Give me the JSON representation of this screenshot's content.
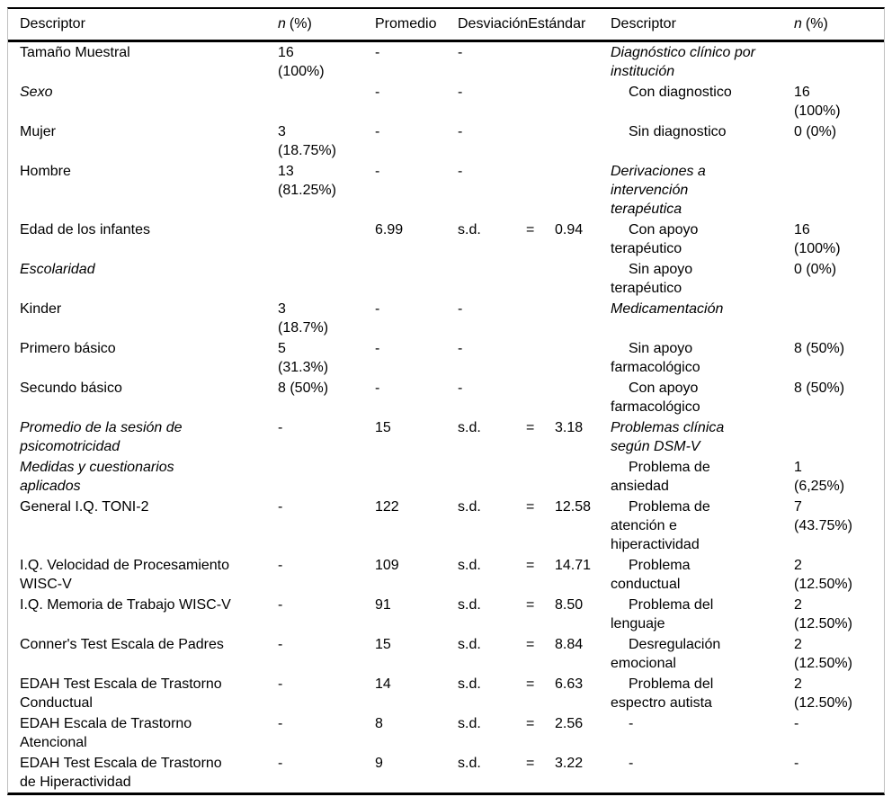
{
  "colors": {
    "background": "#ffffff",
    "text": "#000000",
    "rule": "#000000",
    "outer_border": "#bfbfbf"
  },
  "table": {
    "header": {
      "col1": "Descriptor",
      "col2_n": "n",
      "col2_pct": "(%)",
      "col3": "Promedio",
      "col4": "DesviaciónEstándar",
      "col5": "Descriptor",
      "col6_n": "n",
      "col6_pct": "(%)"
    },
    "rows": [
      {
        "left_desc": "Tamaño Muestral",
        "left_italic": false,
        "left_n": "16\n(100%)",
        "left_prom": "-",
        "sd_label": "-",
        "sd_eq": "",
        "sd_val": "",
        "right_desc": "Diagnóstico clínico por\ninstitución",
        "right_italic": true,
        "right_indent": false,
        "right_n": ""
      },
      {
        "left_desc": "Sexo",
        "left_italic": true,
        "left_n": "",
        "left_prom": "-",
        "sd_label": "-",
        "sd_eq": "",
        "sd_val": "",
        "right_desc": "Con diagnostico",
        "right_italic": false,
        "right_indent": true,
        "right_n": "16\n(100%)"
      },
      {
        "left_desc": "Mujer",
        "left_italic": false,
        "left_n": "3\n(18.75%)",
        "left_prom": "-",
        "sd_label": "-",
        "sd_eq": "",
        "sd_val": "",
        "right_desc": "Sin diagnostico",
        "right_italic": false,
        "right_indent": true,
        "right_n": "0 (0%)"
      },
      {
        "left_desc": "Hombre",
        "left_italic": false,
        "left_n": "13\n(81.25%)",
        "left_prom": "-",
        "sd_label": "-",
        "sd_eq": "",
        "sd_val": "",
        "right_desc": "Derivaciones a\nintervención\nterapéutica",
        "right_italic": true,
        "right_indent": false,
        "right_n": ""
      },
      {
        "left_desc": "Edad de los infantes",
        "left_italic": false,
        "left_n": "",
        "left_prom": "6.99",
        "sd_label": "s.d.",
        "sd_eq": "=",
        "sd_val": "0.94",
        "right_desc": "Con apoyo\nterapéutico",
        "right_italic": false,
        "right_indent": true,
        "right_n": "16\n(100%)"
      },
      {
        "left_desc": "Escolaridad",
        "left_italic": true,
        "left_n": "",
        "left_prom": "",
        "sd_label": "",
        "sd_eq": "",
        "sd_val": "",
        "right_desc": "Sin apoyo\nterapéutico",
        "right_italic": false,
        "right_indent": true,
        "right_n": "0 (0%)"
      },
      {
        "left_desc": "Kinder",
        "left_italic": false,
        "left_n": "3\n(18.7%)",
        "left_prom": "-",
        "sd_label": "-",
        "sd_eq": "",
        "sd_val": "",
        "right_desc": "Medicamentación",
        "right_italic": true,
        "right_indent": false,
        "right_n": ""
      },
      {
        "left_desc": "Primero básico",
        "left_italic": false,
        "left_n": "5\n(31.3%)",
        "left_prom": "-",
        "sd_label": "-",
        "sd_eq": "",
        "sd_val": "",
        "right_desc": "Sin apoyo\nfarmacológico",
        "right_italic": false,
        "right_indent": true,
        "right_n": "8 (50%)"
      },
      {
        "left_desc": "Secundo básico",
        "left_italic": false,
        "left_n": "8 (50%)",
        "left_prom": "-",
        "sd_label": "-",
        "sd_eq": "",
        "sd_val": "",
        "right_desc": "Con apoyo\nfarmacológico",
        "right_italic": false,
        "right_indent": true,
        "right_n": "8 (50%)"
      },
      {
        "left_desc": "Promedio de la sesión de\npsicomotricidad",
        "left_italic": true,
        "left_n": "-",
        "left_prom": "15",
        "sd_label": "s.d.",
        "sd_eq": "=",
        "sd_val": "3.18",
        "right_desc": "Problemas clínica\nsegún DSM-V",
        "right_italic": true,
        "right_indent": false,
        "right_n": ""
      },
      {
        "left_desc": "Medidas y cuestionarios\naplicados",
        "left_italic": true,
        "left_n": "",
        "left_prom": "",
        "sd_label": "",
        "sd_eq": "",
        "sd_val": "",
        "right_desc": "Problema de\nansiedad",
        "right_italic": false,
        "right_indent": true,
        "right_n": "1\n(6,25%)"
      },
      {
        "left_desc": "General I.Q. TONI-2",
        "left_italic": false,
        "left_n": "-",
        "left_prom": "122",
        "sd_label": "s.d.",
        "sd_eq": "=",
        "sd_val": "12.58",
        "right_desc": "Problema de\natención e\nhiperactividad",
        "right_italic": false,
        "right_indent": true,
        "right_n": "7\n(43.75%)"
      },
      {
        "left_desc": "I.Q. Velocidad de Procesamiento\nWISC-V",
        "left_italic": false,
        "left_n": "-",
        "left_prom": "109",
        "sd_label": "s.d.",
        "sd_eq": "=",
        "sd_val": "14.71",
        "right_desc": "Problema\nconductual",
        "right_italic": false,
        "right_indent": true,
        "right_n": "2\n(12.50%)"
      },
      {
        "left_desc": "I.Q. Memoria de Trabajo WISC-V",
        "left_italic": false,
        "left_n": "-",
        "left_prom": "91",
        "sd_label": "s.d.",
        "sd_eq": "=",
        "sd_val": "8.50",
        "right_desc": "Problema del\nlenguaje",
        "right_italic": false,
        "right_indent": true,
        "right_n": "2\n(12.50%)"
      },
      {
        "left_desc": "Conner's Test Escala de Padres",
        "left_italic": false,
        "left_n": "-",
        "left_prom": "15",
        "sd_label": "s.d.",
        "sd_eq": "=",
        "sd_val": "8.84",
        "right_desc": "Desregulación\nemocional",
        "right_italic": false,
        "right_indent": true,
        "right_n": "2\n(12.50%)"
      },
      {
        "left_desc": "EDAH Test Escala de Trastorno\nConductual",
        "left_italic": false,
        "left_n": "-",
        "left_prom": "14",
        "sd_label": "s.d.",
        "sd_eq": "=",
        "sd_val": "6.63",
        "right_desc": "Problema del\nespectro autista",
        "right_italic": false,
        "right_indent": true,
        "right_n": "2\n(12.50%)"
      },
      {
        "left_desc": "EDAH Escala de Trastorno\nAtencional",
        "left_italic": false,
        "left_n": "-",
        "left_prom": "8",
        "sd_label": "s.d.",
        "sd_eq": "=",
        "sd_val": "2.56",
        "right_desc": "-",
        "right_italic": false,
        "right_indent": true,
        "right_n": "-"
      },
      {
        "left_desc": "EDAH Test Escala de Trastorno\nde Hiperactividad",
        "left_italic": false,
        "left_n": "-",
        "left_prom": "9",
        "sd_label": "s.d.",
        "sd_eq": "=",
        "sd_val": "3.22",
        "right_desc": "-",
        "right_italic": false,
        "right_indent": true,
        "right_n": "-"
      }
    ]
  }
}
